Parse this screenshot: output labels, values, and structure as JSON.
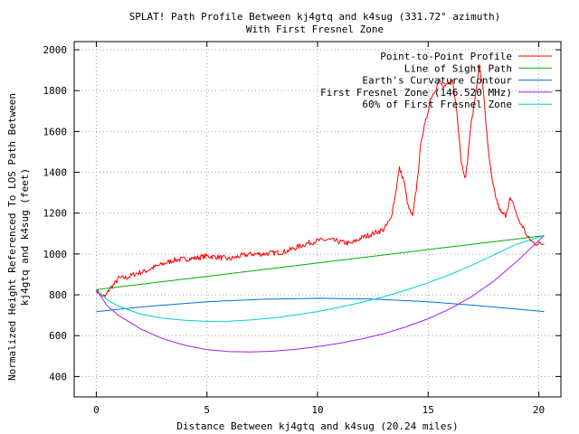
{
  "chart_data": {
    "type": "line",
    "title": "SPLAT! Path Profile Between kj4gtq and k4sug (331.72° azimuth)",
    "subtitle": "With First Fresnel Zone",
    "xlabel": "Distance Between kj4gtq and k4sug (20.24 miles)",
    "ylabel_lines": [
      "Normalized Height Referenced To LOS Path Between",
      "kj4gtq and k4sug (feet)"
    ],
    "xlim": [
      -1,
      21
    ],
    "ylim": [
      300,
      2040
    ],
    "x_ticks": [
      0,
      5,
      10,
      15,
      20
    ],
    "y_ticks": [
      400,
      600,
      800,
      1000,
      1200,
      1400,
      1600,
      1800,
      2000
    ],
    "grid": true,
    "legend_position": "top-right",
    "series": [
      {
        "name": "Point-to-Point Profile",
        "color": "#ff0000",
        "kind": "jagged",
        "points": [
          [
            0.0,
            825
          ],
          [
            0.2,
            800
          ],
          [
            0.4,
            790
          ],
          [
            0.6,
            830
          ],
          [
            0.8,
            850
          ],
          [
            1.0,
            880
          ],
          [
            1.4,
            885
          ],
          [
            1.8,
            905
          ],
          [
            2.2,
            915
          ],
          [
            2.6,
            935
          ],
          [
            3.0,
            950
          ],
          [
            3.5,
            970
          ],
          [
            4.0,
            975
          ],
          [
            4.5,
            980
          ],
          [
            5.0,
            990
          ],
          [
            5.5,
            985
          ],
          [
            6.0,
            975
          ],
          [
            6.5,
            990
          ],
          [
            7.0,
            1000
          ],
          [
            7.5,
            1000
          ],
          [
            8.0,
            1005
          ],
          [
            8.5,
            1010
          ],
          [
            9.0,
            1030
          ],
          [
            9.5,
            1050
          ],
          [
            10.0,
            1065
          ],
          [
            10.5,
            1070
          ],
          [
            11.0,
            1060
          ],
          [
            11.5,
            1050
          ],
          [
            12.0,
            1080
          ],
          [
            12.5,
            1100
          ],
          [
            13.0,
            1120
          ],
          [
            13.3,
            1170
          ],
          [
            13.5,
            1280
          ],
          [
            13.7,
            1420
          ],
          [
            13.9,
            1360
          ],
          [
            14.1,
            1230
          ],
          [
            14.3,
            1180
          ],
          [
            14.5,
            1350
          ],
          [
            14.7,
            1570
          ],
          [
            14.9,
            1650
          ],
          [
            15.1,
            1760
          ],
          [
            15.3,
            1800
          ],
          [
            15.5,
            1850
          ],
          [
            15.7,
            1810
          ],
          [
            15.9,
            1830
          ],
          [
            16.1,
            1850
          ],
          [
            16.3,
            1700
          ],
          [
            16.5,
            1450
          ],
          [
            16.7,
            1370
          ],
          [
            16.9,
            1600
          ],
          [
            17.1,
            1750
          ],
          [
            17.3,
            1920
          ],
          [
            17.5,
            1800
          ],
          [
            17.7,
            1520
          ],
          [
            17.9,
            1350
          ],
          [
            18.1,
            1260
          ],
          [
            18.3,
            1200
          ],
          [
            18.5,
            1190
          ],
          [
            18.7,
            1270
          ],
          [
            18.9,
            1230
          ],
          [
            19.1,
            1160
          ],
          [
            19.3,
            1130
          ],
          [
            19.5,
            1080
          ],
          [
            19.7,
            1060
          ],
          [
            19.9,
            1050
          ],
          [
            20.24,
            1050
          ]
        ]
      },
      {
        "name": "Line of Sight Path",
        "color": "#00b000",
        "kind": "smooth",
        "points": [
          [
            0.0,
            825
          ],
          [
            20.24,
            1090
          ]
        ]
      },
      {
        "name": "Earth's Curvature Contour",
        "color": "#0070d8",
        "kind": "smooth",
        "points": [
          [
            0.0,
            718
          ],
          [
            2.5,
            745
          ],
          [
            5.0,
            766
          ],
          [
            7.5,
            778
          ],
          [
            10.12,
            783
          ],
          [
            12.5,
            779
          ],
          [
            15.0,
            766
          ],
          [
            17.5,
            745
          ],
          [
            20.24,
            718
          ]
        ]
      },
      {
        "name": "First Fresnel Zone (146.520 MHz)",
        "color": "#a020f0",
        "kind": "smooth",
        "points": [
          [
            0.0,
            825
          ],
          [
            0.5,
            745
          ],
          [
            1.0,
            700
          ],
          [
            2.0,
            633
          ],
          [
            3.0,
            585
          ],
          [
            4.0,
            553
          ],
          [
            5.0,
            532
          ],
          [
            6.0,
            522
          ],
          [
            7.0,
            520
          ],
          [
            8.0,
            524
          ],
          [
            9.0,
            533
          ],
          [
            10.0,
            546
          ],
          [
            11.0,
            563
          ],
          [
            12.0,
            584
          ],
          [
            13.0,
            610
          ],
          [
            14.0,
            643
          ],
          [
            15.0,
            683
          ],
          [
            16.0,
            732
          ],
          [
            17.0,
            794
          ],
          [
            18.0,
            870
          ],
          [
            19.0,
            963
          ],
          [
            19.6,
            1025
          ],
          [
            20.24,
            1090
          ]
        ]
      },
      {
        "name": "60% of First Fresnel Zone",
        "color": "#00d0d0",
        "kind": "smooth",
        "points": [
          [
            0.0,
            825
          ],
          [
            0.5,
            775
          ],
          [
            1.0,
            745
          ],
          [
            2.0,
            705
          ],
          [
            3.0,
            685
          ],
          [
            4.0,
            675
          ],
          [
            5.0,
            670
          ],
          [
            6.0,
            671
          ],
          [
            7.0,
            677
          ],
          [
            8.0,
            687
          ],
          [
            9.0,
            701
          ],
          [
            10.0,
            718
          ],
          [
            11.0,
            739
          ],
          [
            12.0,
            763
          ],
          [
            13.0,
            791
          ],
          [
            14.0,
            823
          ],
          [
            15.0,
            859
          ],
          [
            16.0,
            900
          ],
          [
            17.0,
            946
          ],
          [
            18.0,
            997
          ],
          [
            19.0,
            1048
          ],
          [
            19.6,
            1068
          ],
          [
            20.24,
            1090
          ]
        ]
      }
    ]
  }
}
